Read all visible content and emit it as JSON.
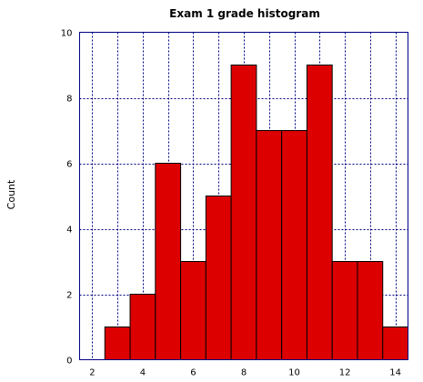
{
  "chart_data": {
    "type": "bar",
    "title": "Exam 1 grade histogram",
    "xlabel": "",
    "ylabel": "Count",
    "xlim": [
      1.5,
      14.5
    ],
    "ylim": [
      0,
      10
    ],
    "xticks": [
      2,
      4,
      6,
      8,
      10,
      12,
      14
    ],
    "yticks": [
      0,
      2,
      4,
      6,
      8,
      10
    ],
    "grid": true,
    "bin_width": 1,
    "bins": [
      {
        "x": 3,
        "count": 1
      },
      {
        "x": 4,
        "count": 2
      },
      {
        "x": 5,
        "count": 6
      },
      {
        "x": 6,
        "count": 3
      },
      {
        "x": 7,
        "count": 5
      },
      {
        "x": 8,
        "count": 9
      },
      {
        "x": 9,
        "count": 7
      },
      {
        "x": 10,
        "count": 7
      },
      {
        "x": 11,
        "count": 9
      },
      {
        "x": 12,
        "count": 3
      },
      {
        "x": 13,
        "count": 3
      },
      {
        "x": 14,
        "count": 1
      }
    ],
    "colors": {
      "bar_fill": "#dd0000",
      "bar_stroke": "#000000",
      "frame": "#000080",
      "grid": "#000080"
    }
  }
}
